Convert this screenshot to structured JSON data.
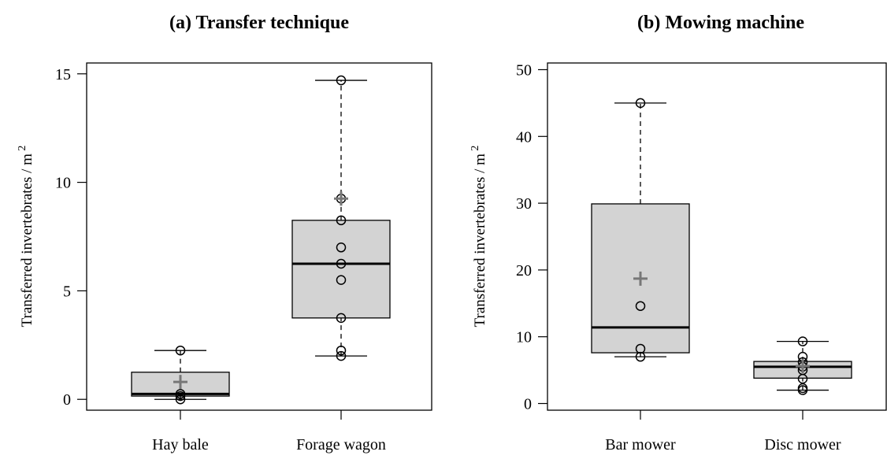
{
  "chart_data": [
    {
      "type": "box",
      "title": "(a) Transfer technique",
      "ylabel": "Transferred invertebrates / m",
      "ylabel_superscript": "2",
      "ylim": [
        -0.5,
        15.5
      ],
      "yticks": [
        0,
        5,
        10,
        15
      ],
      "grid": false,
      "categories": [
        "Hay bale",
        "Forage wagon"
      ],
      "boxes": [
        {
          "category": "Hay bale",
          "whisker_low": 0.0,
          "q1": 0.15,
          "median": 0.25,
          "q3": 1.25,
          "whisker_high": 2.25,
          "mean": 0.8,
          "points": [
            0.0,
            0.15,
            0.25,
            2.25
          ]
        },
        {
          "category": "Forage wagon",
          "whisker_low": 2.0,
          "q1": 3.75,
          "median": 6.25,
          "q3": 8.25,
          "whisker_high": 14.7,
          "mean": 9.25,
          "points": [
            2.0,
            2.25,
            3.75,
            5.5,
            6.25,
            7.0,
            8.25,
            9.25,
            14.7
          ]
        }
      ]
    },
    {
      "type": "box",
      "title": "(b) Mowing machine",
      "ylabel": "Transferred invertebrates / m",
      "ylabel_superscript": "2",
      "ylim": [
        -1,
        51
      ],
      "yticks": [
        0,
        10,
        20,
        30,
        40,
        50
      ],
      "grid": false,
      "categories": [
        "Bar mower",
        "Disc mower"
      ],
      "boxes": [
        {
          "category": "Bar mower",
          "whisker_low": 7.0,
          "q1": 7.6,
          "median": 11.4,
          "q3": 29.9,
          "whisker_high": 45.0,
          "mean": 18.7,
          "points": [
            7.0,
            8.2,
            14.6,
            45.0
          ]
        },
        {
          "category": "Disc mower",
          "whisker_low": 2.0,
          "q1": 3.8,
          "median": 5.5,
          "q3": 6.3,
          "whisker_high": 9.3,
          "mean": 5.6,
          "points": [
            2.0,
            2.3,
            3.7,
            5.0,
            5.5,
            6.2,
            7.0,
            9.3
          ]
        }
      ]
    }
  ]
}
